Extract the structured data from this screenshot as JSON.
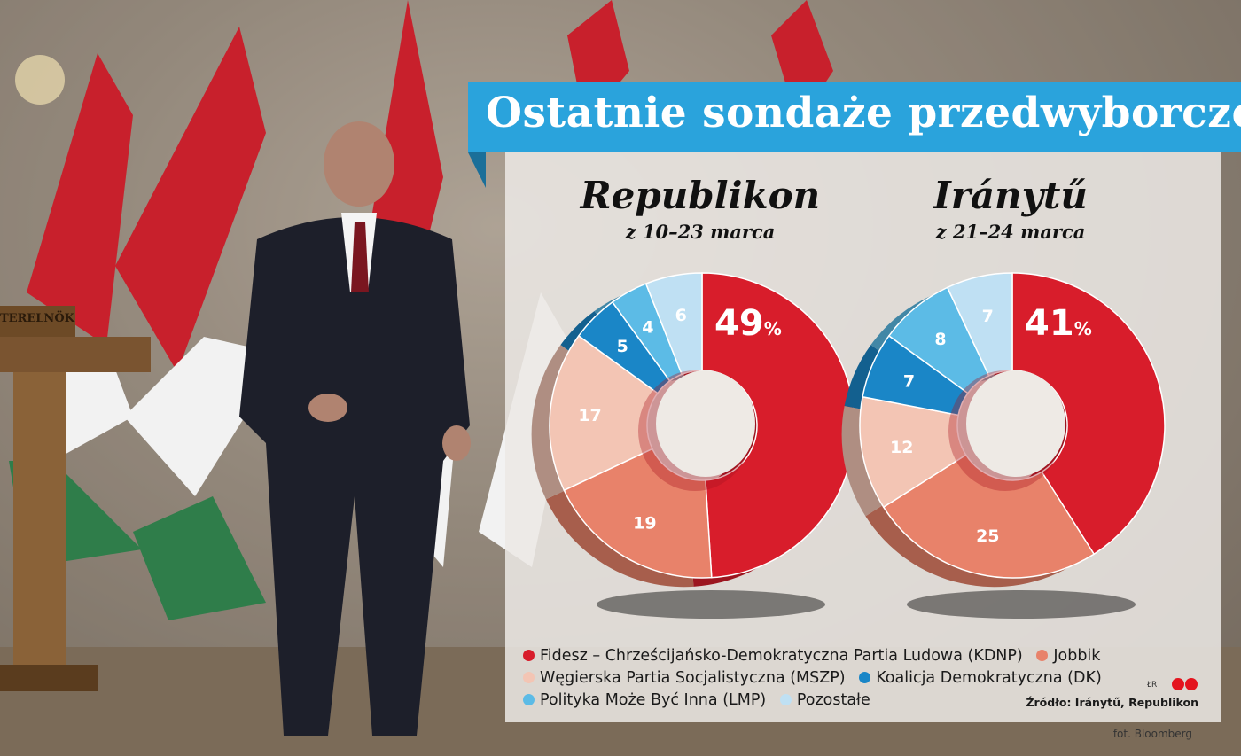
{
  "title": "Ostatnie sondaże przedwyborcze",
  "colors": {
    "title_bar": "#2aa3dc",
    "fidesz": "#d81d2b",
    "jobbik": "#e8826a",
    "mszp": "#f3c5b4",
    "dk": "#1a86c7",
    "lmp": "#5cbbe6",
    "other": "#bfe0f3"
  },
  "chart_data": [
    {
      "type": "pie",
      "title": "Republikon",
      "subtitle": "z 10–23 marca",
      "slices": [
        {
          "key": "fidesz",
          "value": 49,
          "label": "49",
          "suffix": "%"
        },
        {
          "key": "jobbik",
          "value": 19,
          "label": "19"
        },
        {
          "key": "mszp",
          "value": 17,
          "label": "17"
        },
        {
          "key": "dk",
          "value": 5,
          "label": "5"
        },
        {
          "key": "lmp",
          "value": 4,
          "label": "4"
        },
        {
          "key": "other",
          "value": 6,
          "label": "6"
        }
      ]
    },
    {
      "type": "pie",
      "title": "Iránytű",
      "subtitle": "z 21–24 marca",
      "slices": [
        {
          "key": "fidesz",
          "value": 41,
          "label": "41",
          "suffix": "%"
        },
        {
          "key": "jobbik",
          "value": 25,
          "label": "25"
        },
        {
          "key": "mszp",
          "value": 12,
          "label": "12"
        },
        {
          "key": "dk",
          "value": 7,
          "label": "7"
        },
        {
          "key": "lmp",
          "value": 8,
          "label": "8"
        },
        {
          "key": "other",
          "value": 7,
          "label": "7"
        }
      ]
    }
  ],
  "legend": [
    [
      {
        "key": "fidesz",
        "label": "Fidesz – Chrześcijańsko-Demokratyczna Partia Ludowa (KDNP)"
      },
      {
        "key": "jobbik",
        "label": "Jobbik"
      }
    ],
    [
      {
        "key": "mszp",
        "label": "Węgierska Partia Socjalistyczna (MSZP)"
      },
      {
        "key": "dk",
        "label": "Koalicja Demokratyczna (DK)"
      }
    ],
    [
      {
        "key": "lmp",
        "label": "Polityka Może Być Inna (LMP)"
      },
      {
        "key": "other",
        "label": "Pozostałe"
      }
    ]
  ],
  "source": "Źródło: Iránytű, Republikon",
  "logo_initials": "ŁR",
  "credit": "fot. Bloomberg",
  "podium_sign": "TERELNÖK"
}
